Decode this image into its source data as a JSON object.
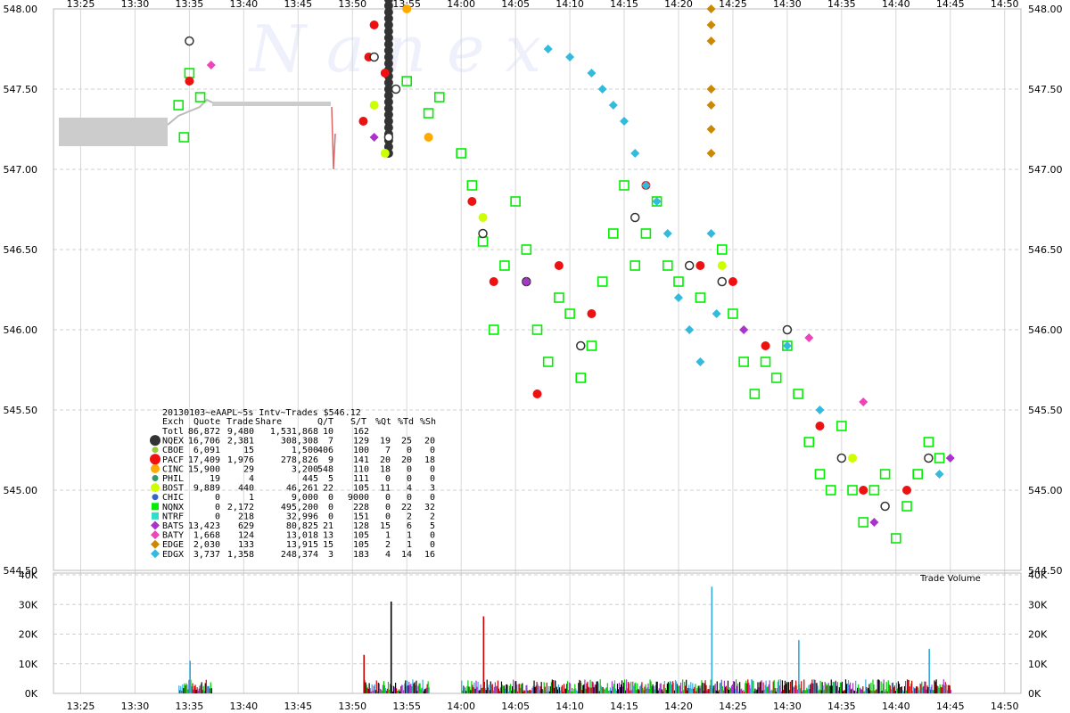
{
  "chart_data": {
    "type": "scatter",
    "title": "20130103~eAAPL~5s Intv~Trades $546.12",
    "watermark": "N a n e x",
    "x_ticks": [
      "13:25",
      "13:30",
      "13:35",
      "13:40",
      "13:45",
      "13:50",
      "13:55",
      "14:00",
      "14:05",
      "14:10",
      "14:15",
      "14:20",
      "14:25",
      "14:30",
      "14:35",
      "14:40",
      "14:45",
      "14:50"
    ],
    "x_range": [
      "13:22:30",
      "14:51:30"
    ],
    "y_ticks": [
      "548.00",
      "547.50",
      "547.00",
      "546.50",
      "546.00",
      "545.50",
      "545.00",
      "544.50"
    ],
    "ylim": [
      544.5,
      548.0
    ],
    "volume": {
      "label": "Trade Volume",
      "ticks": [
        "40K",
        "30K",
        "20K",
        "10K",
        "0K"
      ],
      "ylim": [
        0,
        40000
      ],
      "spikes": [
        {
          "time": "13:53:30",
          "value": 31000,
          "color": "#000000"
        },
        {
          "time": "13:51",
          "value": 13000,
          "color": "#cc0000"
        },
        {
          "time": "14:02",
          "value": 26000,
          "color": "#cc0000"
        },
        {
          "time": "14:23",
          "value": 36000,
          "color": "#33aadd"
        },
        {
          "time": "14:31",
          "value": 18000,
          "color": "#33aadd"
        },
        {
          "time": "14:43",
          "value": 15000,
          "color": "#33aadd"
        },
        {
          "time": "13:35",
          "value": 11000,
          "color": "#33aadd"
        }
      ]
    },
    "legend": {
      "header": [
        "Exch",
        "Quote",
        "Trade",
        "Share",
        "Q/T",
        "S/T",
        "%Qt",
        "%Td",
        "%Sh"
      ],
      "rows": [
        {
          "exch": "Totl",
          "quote": "86,872",
          "trade": "9,480",
          "share": "1,531,868",
          "qt": "10",
          "st": "162",
          "pqt": "",
          "ptd": "",
          "psh": "",
          "color": "",
          "marker": "none"
        },
        {
          "exch": "NQEX",
          "quote": "16,706",
          "trade": "2,381",
          "share": "308,308",
          "qt": "7",
          "st": "129",
          "pqt": "19",
          "ptd": "25",
          "psh": "20",
          "color": "#333333",
          "marker": "circle-big"
        },
        {
          "exch": "CBOE",
          "quote": "6,091",
          "trade": "15",
          "share": "1,500",
          "qt": "406",
          "st": "100",
          "pqt": "7",
          "ptd": "0",
          "psh": "0",
          "color": "#99cc33",
          "marker": "circle-small"
        },
        {
          "exch": "PACF",
          "quote": "17,409",
          "trade": "1,976",
          "share": "278,826",
          "qt": "9",
          "st": "141",
          "pqt": "20",
          "ptd": "20",
          "psh": "18",
          "color": "#ee1111",
          "marker": "circle-big"
        },
        {
          "exch": "CINC",
          "quote": "15,900",
          "trade": "29",
          "share": "3,200",
          "qt": "548",
          "st": "110",
          "pqt": "18",
          "ptd": "0",
          "psh": "0",
          "color": "#ffaa00",
          "marker": "circle"
        },
        {
          "exch": "PHIL",
          "quote": "19",
          "trade": "4",
          "share": "445",
          "qt": "5",
          "st": "111",
          "pqt": "0",
          "ptd": "0",
          "psh": "0",
          "color": "#339966",
          "marker": "circle-small"
        },
        {
          "exch": "BOST",
          "quote": "9,889",
          "trade": "440",
          "share": "46,261",
          "qt": "22",
          "st": "105",
          "pqt": "11",
          "ptd": "4",
          "psh": "3",
          "color": "#ccff00",
          "marker": "circle"
        },
        {
          "exch": "CHIC",
          "quote": "0",
          "trade": "1",
          "share": "9,000",
          "qt": "0",
          "st": "9000",
          "pqt": "0",
          "ptd": "0",
          "psh": "0",
          "color": "#3366cc",
          "marker": "circle-small"
        },
        {
          "exch": "NQNX",
          "quote": "0",
          "trade": "2,172",
          "share": "495,200",
          "qt": "0",
          "st": "228",
          "pqt": "0",
          "ptd": "22",
          "psh": "32",
          "color": "#00ee00",
          "marker": "square"
        },
        {
          "exch": "NTRF",
          "quote": "0",
          "trade": "218",
          "share": "32,996",
          "qt": "0",
          "st": "151",
          "pqt": "0",
          "ptd": "2",
          "psh": "2",
          "color": "#33ddcc",
          "marker": "square"
        },
        {
          "exch": "BATS",
          "quote": "13,423",
          "trade": "629",
          "share": "80,825",
          "qt": "21",
          "st": "128",
          "pqt": "15",
          "ptd": "6",
          "psh": "5",
          "color": "#aa33cc",
          "marker": "diamond"
        },
        {
          "exch": "BATY",
          "quote": "1,668",
          "trade": "124",
          "share": "13,018",
          "qt": "13",
          "st": "105",
          "pqt": "1",
          "ptd": "1",
          "psh": "0",
          "color": "#ee44bb",
          "marker": "diamond"
        },
        {
          "exch": "EDGE",
          "quote": "2,030",
          "trade": "133",
          "share": "13,915",
          "qt": "15",
          "st": "105",
          "pqt": "2",
          "ptd": "1",
          "psh": "0",
          "color": "#cc8800",
          "marker": "diamond"
        },
        {
          "exch": "EDGX",
          "quote": "3,737",
          "trade": "1,358",
          "share": "248,374",
          "qt": "3",
          "st": "183",
          "pqt": "4",
          "ptd": "14",
          "psh": "16",
          "color": "#33bbdd",
          "marker": "diamond"
        }
      ]
    },
    "series": [
      {
        "name": "NQNX",
        "color": "#00ee00",
        "marker": "square-open",
        "points": [
          [
            "13:34",
            "547.40"
          ],
          [
            "13:34:30",
            "547.20"
          ],
          [
            "13:35",
            "547.60"
          ],
          [
            "13:36",
            "547.45"
          ],
          [
            "13:55",
            "547.55"
          ],
          [
            "13:57",
            "547.35"
          ],
          [
            "13:58",
            "547.45"
          ],
          [
            "14:00",
            "547.10"
          ],
          [
            "14:01",
            "546.90"
          ],
          [
            "14:02",
            "546.55"
          ],
          [
            "14:03",
            "546.00"
          ],
          [
            "14:04",
            "546.40"
          ],
          [
            "14:05",
            "546.80"
          ],
          [
            "14:06",
            "546.50"
          ],
          [
            "14:07",
            "546.00"
          ],
          [
            "14:08",
            "545.80"
          ],
          [
            "14:09",
            "546.20"
          ],
          [
            "14:10",
            "546.10"
          ],
          [
            "14:11",
            "545.70"
          ],
          [
            "14:12",
            "545.90"
          ],
          [
            "14:13",
            "546.30"
          ],
          [
            "14:14",
            "546.60"
          ],
          [
            "14:15",
            "546.90"
          ],
          [
            "14:16",
            "546.40"
          ],
          [
            "14:17",
            "546.60"
          ],
          [
            "14:18",
            "546.80"
          ],
          [
            "14:19",
            "546.40"
          ],
          [
            "14:20",
            "546.30"
          ],
          [
            "14:22",
            "546.20"
          ],
          [
            "14:24",
            "546.50"
          ],
          [
            "14:25",
            "546.10"
          ],
          [
            "14:26",
            "545.80"
          ],
          [
            "14:27",
            "545.60"
          ],
          [
            "14:28",
            "545.80"
          ],
          [
            "14:29",
            "545.70"
          ],
          [
            "14:30",
            "545.90"
          ],
          [
            "14:31",
            "545.60"
          ],
          [
            "14:32",
            "545.30"
          ],
          [
            "14:33",
            "545.10"
          ],
          [
            "14:34",
            "545.00"
          ],
          [
            "14:35",
            "545.40"
          ],
          [
            "14:36",
            "545.00"
          ],
          [
            "14:37",
            "544.80"
          ],
          [
            "14:38",
            "545.00"
          ],
          [
            "14:39",
            "545.10"
          ],
          [
            "14:40",
            "544.70"
          ],
          [
            "14:41",
            "544.90"
          ],
          [
            "14:42",
            "545.10"
          ],
          [
            "14:43",
            "545.30"
          ],
          [
            "14:44",
            "545.20"
          ]
        ]
      },
      {
        "name": "PACF",
        "color": "#ee1111",
        "marker": "circle",
        "points": [
          [
            "13:35",
            "547.55"
          ],
          [
            "13:51",
            "547.30"
          ],
          [
            "13:51:30",
            "547.70"
          ],
          [
            "13:52",
            "547.90"
          ],
          [
            "13:53",
            "547.60"
          ],
          [
            "14:01",
            "546.80"
          ],
          [
            "14:03",
            "546.30"
          ],
          [
            "14:07",
            "545.60"
          ],
          [
            "14:09",
            "546.40"
          ],
          [
            "14:12",
            "546.10"
          ],
          [
            "14:17",
            "546.90"
          ],
          [
            "14:22",
            "546.40"
          ],
          [
            "14:25",
            "546.30"
          ],
          [
            "14:28",
            "545.90"
          ],
          [
            "14:33",
            "545.40"
          ],
          [
            "14:37",
            "545.00"
          ],
          [
            "14:41",
            "545.00"
          ]
        ]
      },
      {
        "name": "NQEX",
        "color": "#333333",
        "marker": "circle-open",
        "points": [
          [
            "13:35",
            "547.80"
          ],
          [
            "13:52",
            "547.70"
          ],
          [
            "13:53",
            "548.15"
          ],
          [
            "13:53:20",
            "547.20"
          ],
          [
            "13:54",
            "547.50"
          ],
          [
            "14:02",
            "546.60"
          ],
          [
            "14:06",
            "546.30"
          ],
          [
            "14:11",
            "545.90"
          ],
          [
            "14:16",
            "546.70"
          ],
          [
            "14:21",
            "546.40"
          ],
          [
            "14:24",
            "546.30"
          ],
          [
            "14:30",
            "546.00"
          ],
          [
            "14:35",
            "545.20"
          ],
          [
            "14:39",
            "544.90"
          ],
          [
            "14:43",
            "545.20"
          ]
        ]
      },
      {
        "name": "EDGX",
        "color": "#33bbdd",
        "marker": "diamond",
        "points": [
          [
            "14:08",
            "547.75"
          ],
          [
            "14:10",
            "547.70"
          ],
          [
            "14:12",
            "547.60"
          ],
          [
            "14:13",
            "547.50"
          ],
          [
            "14:14",
            "547.40"
          ],
          [
            "14:15",
            "547.30"
          ],
          [
            "14:16",
            "547.10"
          ],
          [
            "14:17",
            "546.90"
          ],
          [
            "14:18",
            "546.80"
          ],
          [
            "14:19",
            "546.60"
          ],
          [
            "14:20",
            "546.20"
          ],
          [
            "14:21",
            "546.00"
          ],
          [
            "14:22",
            "545.80"
          ],
          [
            "14:23",
            "546.60"
          ],
          [
            "14:23:30",
            "546.10"
          ],
          [
            "14:30",
            "545.90"
          ],
          [
            "14:33",
            "545.50"
          ],
          [
            "14:44",
            "545.10"
          ]
        ]
      },
      {
        "name": "EDGE",
        "color": "#cc8800",
        "marker": "diamond",
        "points": [
          [
            "14:23",
            "548.00"
          ],
          [
            "14:23",
            "547.90"
          ],
          [
            "14:23",
            "547.80"
          ],
          [
            "14:23",
            "547.50"
          ],
          [
            "14:23",
            "547.40"
          ],
          [
            "14:23",
            "547.25"
          ],
          [
            "14:23",
            "547.10"
          ]
        ]
      },
      {
        "name": "BATS",
        "color": "#aa33cc",
        "marker": "diamond",
        "points": [
          [
            "13:52",
            "547.20"
          ],
          [
            "14:06",
            "546.30"
          ],
          [
            "14:26",
            "546.00"
          ],
          [
            "14:38",
            "544.80"
          ],
          [
            "14:45",
            "545.20"
          ]
        ]
      },
      {
        "name": "BATY",
        "color": "#ee44bb",
        "marker": "diamond",
        "points": [
          [
            "13:37",
            "547.65"
          ],
          [
            "14:32",
            "545.95"
          ],
          [
            "14:37",
            "545.55"
          ]
        ]
      },
      {
        "name": "BOST",
        "color": "#ccff00",
        "marker": "circle",
        "points": [
          [
            "13:52",
            "547.40"
          ],
          [
            "13:53",
            "547.10"
          ],
          [
            "14:02",
            "546.70"
          ],
          [
            "14:24",
            "546.40"
          ],
          [
            "14:36",
            "545.20"
          ]
        ]
      },
      {
        "name": "CINC",
        "color": "#ffaa00",
        "marker": "circle",
        "points": [
          [
            "13:55",
            "548.00"
          ],
          [
            "13:57",
            "547.20"
          ]
        ]
      }
    ]
  }
}
